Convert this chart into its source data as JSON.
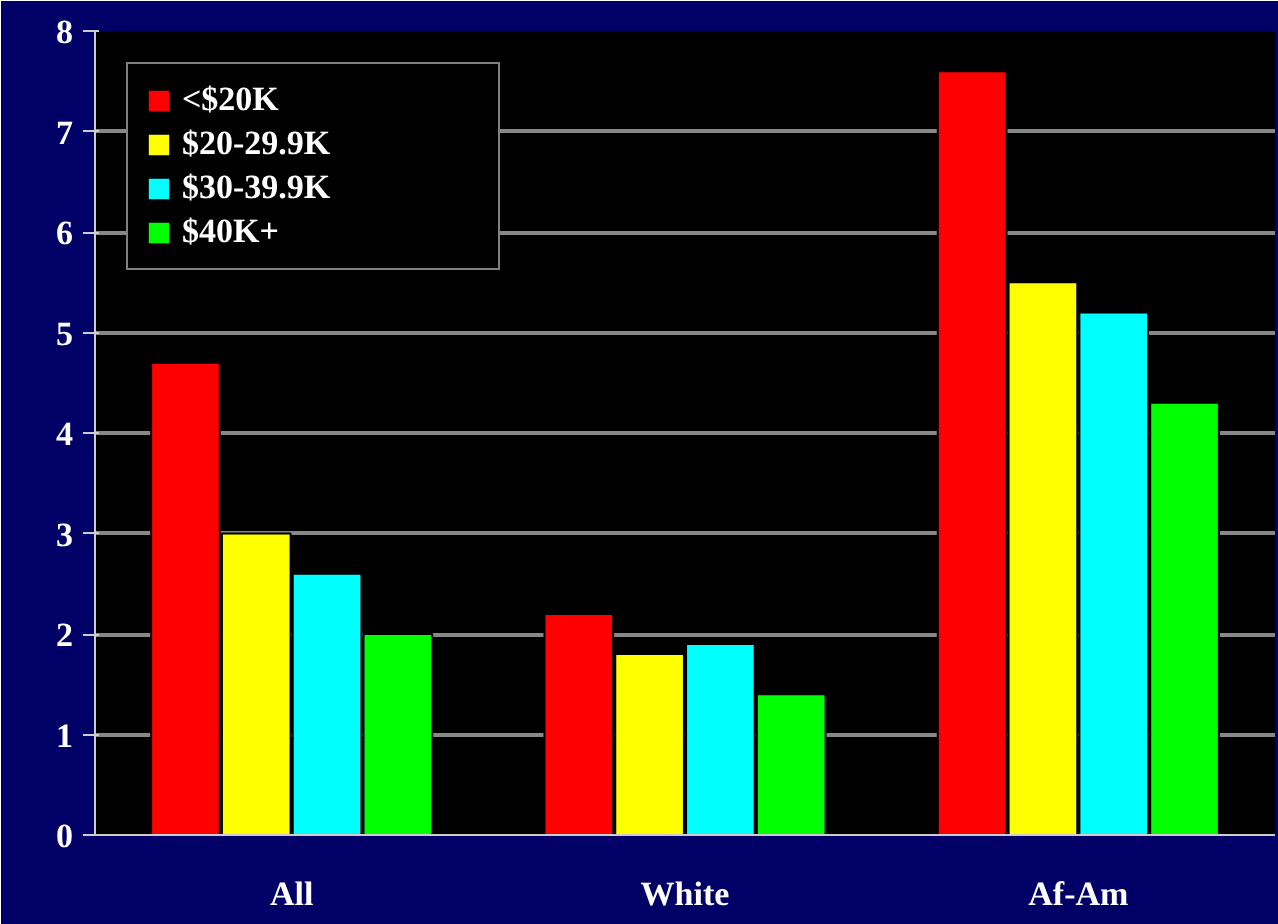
{
  "chart_data": {
    "type": "bar",
    "categories": [
      "All",
      "White",
      "Af-Am"
    ],
    "series": [
      {
        "name": "<$20K",
        "color": "#ff0000",
        "values": [
          4.7,
          2.2,
          7.6
        ]
      },
      {
        "name": "$20-29.9K",
        "color": "#ffff00",
        "values": [
          3.0,
          1.8,
          5.5
        ]
      },
      {
        "name": "$30-39.9K",
        "color": "#00ffff",
        "values": [
          2.6,
          1.9,
          5.2
        ]
      },
      {
        "name": "$40K+",
        "color": "#00ff00",
        "values": [
          2.0,
          1.4,
          4.3
        ]
      }
    ],
    "ylim": [
      0,
      8
    ],
    "yticks": [
      0,
      1,
      2,
      3,
      4,
      5,
      6,
      7,
      8
    ],
    "grid": "y",
    "legend": "top left"
  }
}
